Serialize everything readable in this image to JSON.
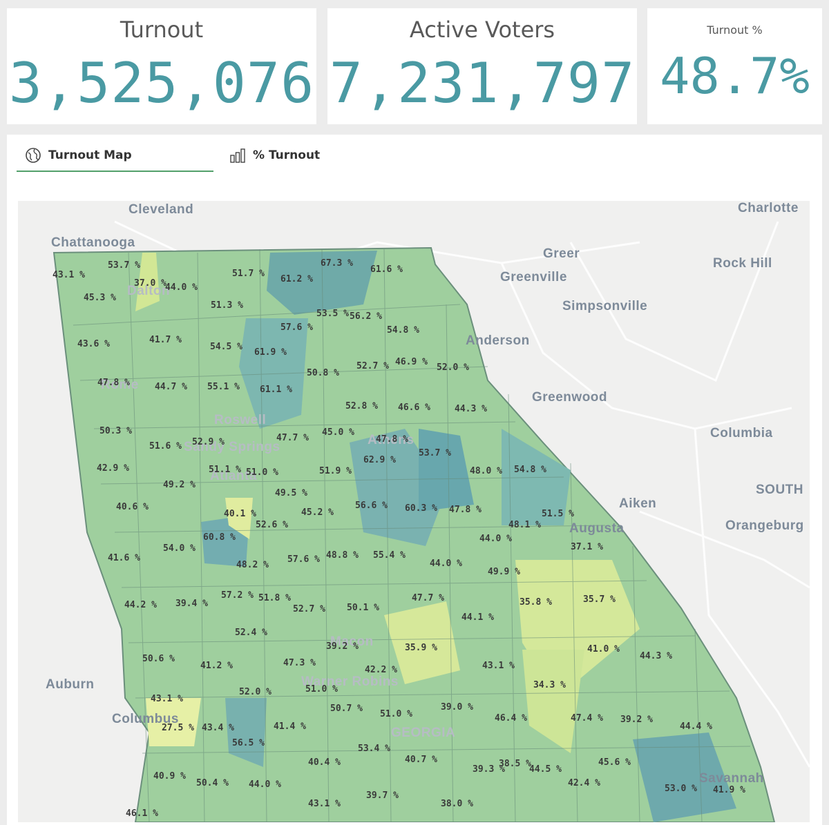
{
  "kpis": {
    "turnout": {
      "title": "Turnout",
      "value": "3,525,076"
    },
    "active": {
      "title": "Active Voters",
      "value": "7,231,797"
    },
    "pct": {
      "title": "Turnout %",
      "value": "48.7%"
    }
  },
  "tabs": [
    {
      "label": "Turnout Map",
      "icon": "globe-icon"
    },
    {
      "label": "% Turnout",
      "icon": "bar-chart-icon"
    }
  ],
  "colors": {
    "accent": "#4a9aa3",
    "tab_underline": "#52a06a",
    "low": "#d4e89a",
    "mid": "#9bcc9b",
    "high": "#5fa6b0"
  },
  "map": {
    "cities": [
      "Cleveland",
      "Charlotte",
      "Chattanooga",
      "Greer",
      "Rock Hill",
      "Greenville",
      "Dalton",
      "Simpsonville",
      "Anderson",
      "Greenwood",
      "Rome",
      "Roswell",
      "Athens",
      "Columbia",
      "Sandy Springs",
      "Atlanta",
      "SOUTH",
      "Aiken",
      "Orangeburg",
      "Augusta",
      "Macon",
      "Auburn",
      "Warner Robins",
      "Columbus",
      "GEORGIA",
      "Savannah"
    ],
    "labels": [
      "43.1 %",
      "53.7 %",
      "37.0 %",
      "44.0 %",
      "51.7 %",
      "61.2 %",
      "67.3 %",
      "61.6 %",
      "45.3 %",
      "51.3 %",
      "53.5 %",
      "56.2 %",
      "57.6 %",
      "54.8 %",
      "43.6 %",
      "41.7 %",
      "54.5 %",
      "61.9 %",
      "52.7 %",
      "46.9 %",
      "52.0 %",
      "50.8 %",
      "47.8 %",
      "44.7 %",
      "55.1 %",
      "61.1 %",
      "52.8 %",
      "46.6 %",
      "44.3 %",
      "50.3 %",
      "47.7 %",
      "45.0 %",
      "47.8 %",
      "51.6 %",
      "52.9 %",
      "53.7 %",
      "62.9 %",
      "42.9 %",
      "51.1 %",
      "51.0 %",
      "51.9 %",
      "48.0 %",
      "54.8 %",
      "49.2 %",
      "49.5 %",
      "40.6 %",
      "45.2 %",
      "56.6 %",
      "60.3 %",
      "47.8 %",
      "51.5 %",
      "40.1 %",
      "52.6 %",
      "48.1 %",
      "60.8 %",
      "44.0 %",
      "54.0 %",
      "37.1 %",
      "41.6 %",
      "48.8 %",
      "55.4 %",
      "57.6 %",
      "44.0 %",
      "48.2 %",
      "49.9 %",
      "57.2 %",
      "51.8 %",
      "47.7 %",
      "35.8 %",
      "35.7 %",
      "44.2 %",
      "39.4 %",
      "52.7 %",
      "50.1 %",
      "44.1 %",
      "52.4 %",
      "39.2 %",
      "35.9 %",
      "41.0 %",
      "44.3 %",
      "50.6 %",
      "41.2 %",
      "47.3 %",
      "43.1 %",
      "42.2 %",
      "34.3 %",
      "52.0 %",
      "51.0 %",
      "43.1 %",
      "50.7 %",
      "39.0 %",
      "51.0 %",
      "47.4 %",
      "39.2 %",
      "46.4 %",
      "27.5 %",
      "43.4 %",
      "41.4 %",
      "44.4 %",
      "56.5 %",
      "53.4 %",
      "40.7 %",
      "38.5 %",
      "40.4 %",
      "39.3 %",
      "44.5 %",
      "45.6 %",
      "40.9 %",
      "50.4 %",
      "44.0 %",
      "42.4 %",
      "53.0 %",
      "41.9 %",
      "39.7 %",
      "43.1 %",
      "38.0 %",
      "46.1 %"
    ]
  }
}
